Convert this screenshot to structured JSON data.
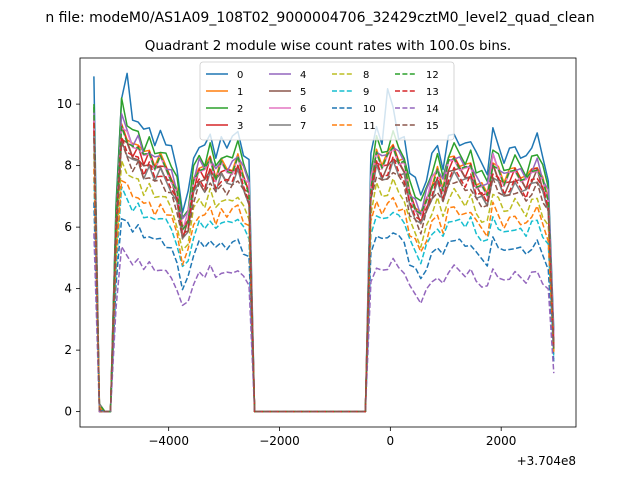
{
  "chart_data": {
    "type": "line",
    "suptitle": "n file: modeM0/AS1A09_108T02_9000004706_32429cztM0_level2_quad_clean",
    "title": "Quadrant 2 module wise count rates with 100.0s bins.",
    "xlabel": "",
    "ylabel": "",
    "x_offset_label": "+3.704e8",
    "xlim": [
      -5600,
      3350
    ],
    "ylim": [
      -0.5,
      11.5
    ],
    "xticks": [
      -4000,
      -2000,
      0,
      2000
    ],
    "xtick_labels": [
      "−4000",
      "−2000",
      "0",
      "2000"
    ],
    "yticks": [
      0,
      2,
      4,
      6,
      8,
      10
    ],
    "ytick_labels": [
      "0",
      "2",
      "4",
      "6",
      "8",
      "10"
    ],
    "legend_position": "upper-center",
    "legend_columns": 4,
    "x": [
      -5350,
      -5250,
      -5150,
      -5050,
      -4950,
      -4850,
      -4750,
      -4650,
      -4550,
      -4450,
      -4350,
      -4250,
      -4150,
      -4050,
      -3950,
      -3850,
      -3750,
      -3650,
      -3550,
      -3450,
      -3350,
      -3250,
      -3150,
      -3050,
      -2950,
      -2850,
      -2750,
      -2650,
      -2550,
      -2450,
      -2350,
      -2250,
      -2150,
      -2050,
      -1950,
      -1850,
      -1750,
      -1650,
      -1550,
      -1450,
      -1350,
      -1250,
      -1150,
      -1050,
      -950,
      -850,
      -750,
      -650,
      -550,
      -450,
      -350,
      -250,
      -150,
      -50,
      50,
      150,
      250,
      350,
      450,
      550,
      650,
      750,
      850,
      950,
      1050,
      1150,
      1250,
      1350,
      1450,
      1550,
      1650,
      1750,
      1850,
      1950,
      2050,
      2150,
      2250,
      2350,
      2450,
      2550,
      2650,
      2750,
      2850,
      2950
    ],
    "base_shape": [
      1.0,
      0.01,
      0.0,
      0.0,
      0.65,
      1.0,
      0.96,
      0.92,
      0.93,
      0.88,
      0.9,
      0.86,
      0.88,
      0.85,
      0.82,
      0.76,
      0.64,
      0.68,
      0.8,
      0.85,
      0.83,
      0.88,
      0.82,
      0.86,
      0.84,
      0.85,
      0.88,
      0.82,
      0.78,
      0.0,
      0.0,
      0.0,
      0.0,
      0.0,
      0.0,
      0.0,
      0.0,
      0.0,
      0.0,
      0.0,
      0.0,
      0.0,
      0.0,
      0.0,
      0.0,
      0.0,
      0.0,
      0.0,
      0.0,
      0.0,
      0.8,
      0.9,
      0.86,
      0.88,
      0.92,
      0.88,
      0.86,
      0.76,
      0.72,
      0.68,
      0.74,
      0.8,
      0.84,
      0.78,
      0.86,
      0.88,
      0.86,
      0.84,
      0.86,
      0.8,
      0.78,
      0.76,
      0.88,
      0.84,
      0.8,
      0.82,
      0.84,
      0.82,
      0.8,
      0.84,
      0.86,
      0.8,
      0.74,
      0.24
    ],
    "series": [
      {
        "name": "0",
        "color": "#1f77b4",
        "dash": "solid",
        "level": 10.3,
        "start": 10.9,
        "spikes": [
          [
            6,
            11.0
          ],
          [
            53,
            10.5
          ],
          [
            54,
            9.9
          ]
        ]
      },
      {
        "name": "1",
        "color": "#ff7f0e",
        "dash": "solid",
        "level": 9.4,
        "start": 9.6,
        "spikes": []
      },
      {
        "name": "2",
        "color": "#2ca02c",
        "dash": "solid",
        "level": 9.8,
        "start": 10.0,
        "spikes": [
          [
            5,
            10.2
          ]
        ]
      },
      {
        "name": "3",
        "color": "#d62728",
        "dash": "solid",
        "level": 9.2,
        "start": 9.5,
        "spikes": []
      },
      {
        "name": "4",
        "color": "#9467bd",
        "dash": "solid",
        "level": 9.5,
        "start": 9.8,
        "spikes": []
      },
      {
        "name": "5",
        "color": "#8c564b",
        "dash": "solid",
        "level": 9.0,
        "start": 9.2,
        "spikes": []
      },
      {
        "name": "6",
        "color": "#e377c2",
        "dash": "solid",
        "level": 9.3,
        "start": 9.6,
        "spikes": []
      },
      {
        "name": "7",
        "color": "#7f7f7f",
        "dash": "solid",
        "level": 8.8,
        "start": 9.0,
        "spikes": []
      },
      {
        "name": "8",
        "color": "#bcbd22",
        "dash": "dashed",
        "level": 8.1,
        "start": 8.4,
        "spikes": []
      },
      {
        "name": "9",
        "color": "#17becf",
        "dash": "dashed",
        "level": 7.2,
        "start": 7.6,
        "spikes": []
      },
      {
        "name": "10",
        "color": "#1f77b4",
        "dash": "dashed",
        "level": 6.4,
        "start": 6.8,
        "spikes": []
      },
      {
        "name": "11",
        "color": "#ff7f0e",
        "dash": "dashed",
        "level": 7.6,
        "start": 7.9,
        "spikes": []
      },
      {
        "name": "12",
        "color": "#2ca02c",
        "dash": "dashed",
        "level": 9.3,
        "start": 9.9,
        "spikes": []
      },
      {
        "name": "13",
        "color": "#d62728",
        "dash": "dashed",
        "level": 8.9,
        "start": 9.4,
        "spikes": []
      },
      {
        "name": "14",
        "color": "#9467bd",
        "dash": "dashed",
        "level": 5.3,
        "start": 5.8,
        "spikes": []
      },
      {
        "name": "15",
        "color": "#8c564b",
        "dash": "dashed",
        "level": 8.6,
        "start": 8.9,
        "spikes": []
      }
    ]
  }
}
